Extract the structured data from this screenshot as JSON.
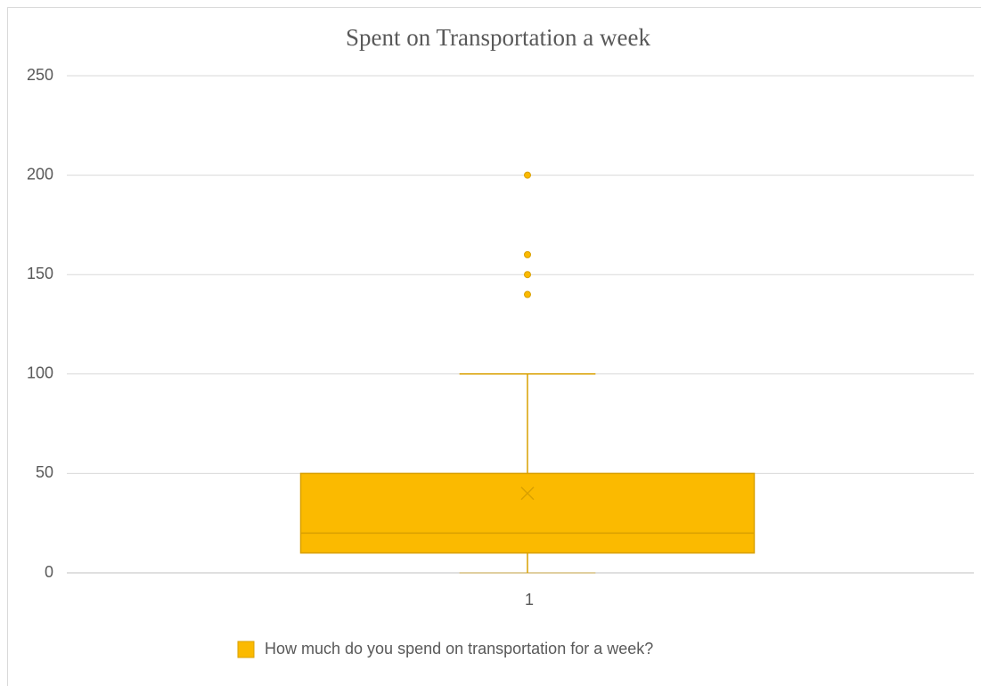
{
  "chart_data": {
    "type": "box",
    "title": "Spent on Transportation a week",
    "categories": [
      "1"
    ],
    "series": [
      {
        "name": "How much do you spend on transportation for a week?",
        "color": "#fbba00",
        "edge": "#d9a000",
        "min": [
          0
        ],
        "q1": [
          10
        ],
        "median": [
          20
        ],
        "q3": [
          50
        ],
        "max": [
          100
        ],
        "mean": [
          40
        ],
        "outliers": [
          [
            200,
            160,
            150,
            140
          ]
        ]
      }
    ],
    "ylim": [
      0,
      250
    ],
    "yticks": [
      0,
      50,
      100,
      150,
      200,
      250
    ],
    "grid": true,
    "legend": "bottom"
  }
}
